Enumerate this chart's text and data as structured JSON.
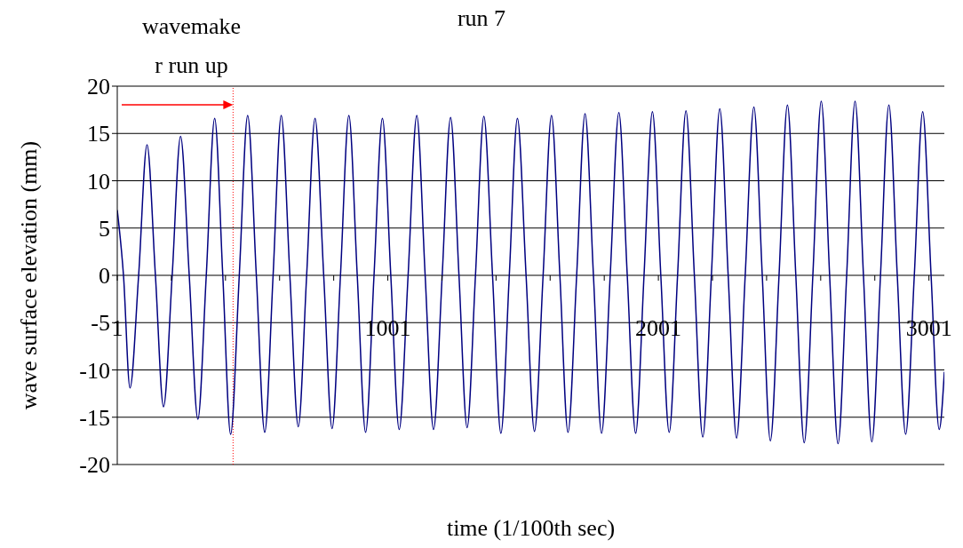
{
  "chart_data": {
    "type": "line",
    "title": "run 7",
    "xlabel": "time (1/100th sec)",
    "ylabel": "wave surface elevation (mm)",
    "annotations": [
      "wavemaker run up"
    ],
    "x": [
      1,
      24,
      48,
      80,
      111,
      142,
      172,
      204,
      235,
      267,
      299,
      330,
      361,
      391,
      420,
      452,
      483,
      515,
      546,
      577,
      607,
      639,
      670,
      701,
      732,
      764,
      795,
      826,
      857,
      888,
      919,
      950,
      981,
      1012,
      1043,
      1076,
      1108,
      1139,
      1170,
      1202,
      1233,
      1264,
      1294,
      1325,
      1356,
      1388,
      1419,
      1450,
      1480,
      1512,
      1543,
      1575,
      1606,
      1637,
      1667,
      1699,
      1730,
      1761,
      1791,
      1823,
      1855,
      1886,
      1917,
      1948,
      1979,
      2010,
      2041,
      2072,
      2103,
      2134,
      2165,
      2197,
      2228,
      2259,
      2290,
      2322,
      2354,
      2385,
      2415,
      2447,
      2478,
      2509,
      2540,
      2572,
      2603,
      2634,
      2665,
      2697,
      2728,
      2759,
      2790,
      2822,
      2853,
      2884,
      2915,
      2947,
      2978,
      3009,
      3039,
      3058
    ],
    "series": [
      {
        "color": "#000080",
        "values": [
          6.9,
          0,
          -11.9,
          0,
          13.8,
          0,
          -13.9,
          0,
          14.7,
          0,
          -15.2,
          0,
          16.6,
          0,
          -16.8,
          0,
          16.9,
          0,
          -16.6,
          0,
          16.9,
          0,
          -16.0,
          0,
          16.6,
          0,
          -16.2,
          0,
          16.9,
          0,
          -16.6,
          0,
          16.6,
          0,
          -16.3,
          0,
          16.9,
          0,
          -16.3,
          0,
          16.7,
          0,
          -16.1,
          0,
          16.8,
          0,
          -16.7,
          0,
          16.6,
          0,
          -16.5,
          0,
          16.9,
          0,
          -16.6,
          0,
          17.1,
          0,
          -16.7,
          0,
          17.2,
          0,
          -16.7,
          0,
          17.3,
          0,
          -16.6,
          0,
          17.4,
          0,
          -17.1,
          0,
          17.6,
          0,
          -17.2,
          0,
          17.8,
          0,
          -17.5,
          0,
          18.0,
          0,
          -17.7,
          0,
          18.4,
          0,
          -17.8,
          0,
          18.4,
          0,
          -17.6,
          0,
          18.0,
          0,
          -16.8,
          0,
          17.3,
          0,
          -16.3,
          -10.2
        ]
      }
    ],
    "xlim": [
      1,
      3058
    ],
    "xticks": [
      1,
      {
        "value": 201,
        "label": null
      },
      {
        "value": 401,
        "label": null
      },
      {
        "value": 601,
        "label": null
      },
      {
        "value": 801,
        "label": null
      },
      1001,
      {
        "value": 1201,
        "label": null
      },
      {
        "value": 1401,
        "label": null
      },
      {
        "value": 1601,
        "label": null
      },
      {
        "value": 1801,
        "label": null
      },
      2001,
      {
        "value": 2201,
        "label": null
      },
      {
        "value": 2401,
        "label": null
      },
      {
        "value": 2601,
        "label": null
      },
      {
        "value": 2801,
        "label": null
      },
      3001
    ],
    "ylim": [
      -20,
      20
    ],
    "yticks": [
      -20,
      -15,
      -10,
      -5,
      0,
      5,
      10,
      15,
      20
    ],
    "ref_lines": [
      {
        "axis": "x",
        "value": 429,
        "color": "#ff0000",
        "line_style": "dotted"
      }
    ],
    "grid": "y",
    "legend": false
  }
}
